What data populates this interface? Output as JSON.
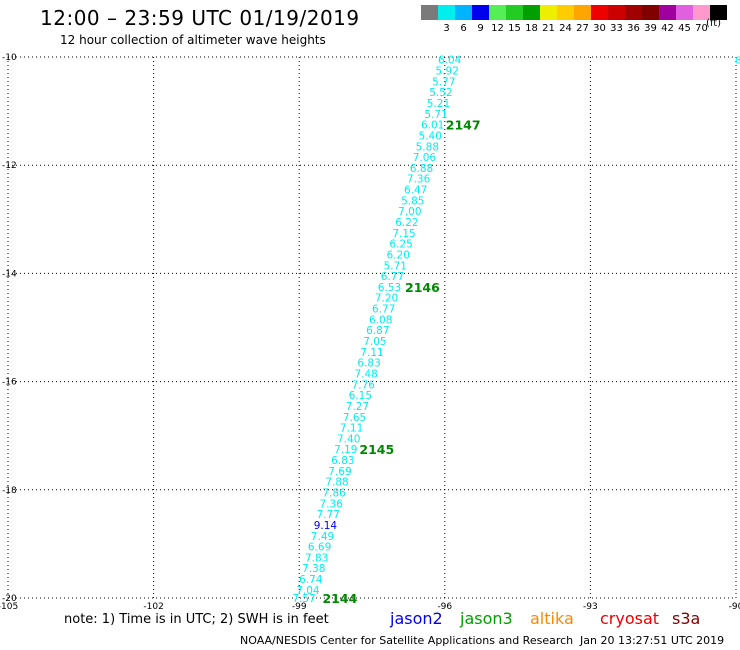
{
  "header": {
    "title": "12:00 – 23:59 UTC 01/19/2019",
    "subtitle": "12 hour collection of altimeter wave heights"
  },
  "legend": {
    "unit": "(ft)",
    "swatches": [
      {
        "color": "#7a7a7a",
        "label": ""
      },
      {
        "color": "#00eeee",
        "label": "3"
      },
      {
        "color": "#00b4ff",
        "label": "6"
      },
      {
        "color": "#0000ee",
        "label": "9"
      },
      {
        "color": "#56ee56",
        "label": "12"
      },
      {
        "color": "#22cc22",
        "label": "15"
      },
      {
        "color": "#00a000",
        "label": "18"
      },
      {
        "color": "#eeee00",
        "label": "21"
      },
      {
        "color": "#ffcc00",
        "label": "24"
      },
      {
        "color": "#ffa500",
        "label": "27"
      },
      {
        "color": "#ee0000",
        "label": "30"
      },
      {
        "color": "#cc0000",
        "label": "33"
      },
      {
        "color": "#a00000",
        "label": "36"
      },
      {
        "color": "#800000",
        "label": "39"
      },
      {
        "color": "#a000a0",
        "label": "42"
      },
      {
        "color": "#e060e0",
        "label": "45"
      },
      {
        "color": "#ff99cc",
        "label": "70"
      },
      {
        "color": "#000000",
        "label": ""
      }
    ]
  },
  "map": {
    "lon_ticks": [
      "-105",
      "-102",
      "-99",
      "-96",
      "-93",
      "-90"
    ],
    "lat_ticks": [
      "-10",
      "-12",
      "-14",
      "-16",
      "-18",
      "-20"
    ],
    "lon_range": [
      -105,
      -90
    ],
    "lat_range": [
      -20,
      -10
    ],
    "grid": true,
    "readings": [
      {
        "value": "6.04",
        "lat": -10.05,
        "lon": -95.9,
        "color": "#00eeee"
      },
      {
        "value": "5.92",
        "lat": -10.25,
        "lon": -95.95,
        "color": "#00eeee"
      },
      {
        "value": "5.77",
        "lat": -10.45,
        "lon": -96.02,
        "color": "#00eeee"
      },
      {
        "value": "5.52",
        "lat": -10.65,
        "lon": -96.08,
        "color": "#00eeee"
      },
      {
        "value": "5.21",
        "lat": -10.85,
        "lon": -96.13,
        "color": "#00eeee"
      },
      {
        "value": "5.71",
        "lat": -11.05,
        "lon": -96.18,
        "color": "#00eeee"
      },
      {
        "value": "6.01",
        "lat": -11.25,
        "lon": -96.25,
        "color": "#00eeee"
      },
      {
        "value": "5.40",
        "lat": -11.45,
        "lon": -96.3,
        "color": "#00eeee"
      },
      {
        "value": "5.88",
        "lat": -11.65,
        "lon": -96.36,
        "color": "#00eeee"
      },
      {
        "value": "7.06",
        "lat": -11.85,
        "lon": -96.42,
        "color": "#00eeee"
      },
      {
        "value": "6.88",
        "lat": -12.05,
        "lon": -96.48,
        "color": "#00eeee"
      },
      {
        "value": "7.36",
        "lat": -12.25,
        "lon": -96.54,
        "color": "#00eeee"
      },
      {
        "value": "6.47",
        "lat": -12.45,
        "lon": -96.6,
        "color": "#00eeee"
      },
      {
        "value": "5.85",
        "lat": -12.65,
        "lon": -96.66,
        "color": "#00eeee"
      },
      {
        "value": "7.00",
        "lat": -12.85,
        "lon": -96.72,
        "color": "#00eeee"
      },
      {
        "value": "6.22",
        "lat": -13.05,
        "lon": -96.78,
        "color": "#00eeee"
      },
      {
        "value": "7.15",
        "lat": -13.25,
        "lon": -96.84,
        "color": "#00eeee"
      },
      {
        "value": "6.25",
        "lat": -13.45,
        "lon": -96.9,
        "color": "#00eeee"
      },
      {
        "value": "6.20",
        "lat": -13.65,
        "lon": -96.96,
        "color": "#00eeee"
      },
      {
        "value": "5.71",
        "lat": -13.85,
        "lon": -97.02,
        "color": "#00eeee"
      },
      {
        "value": "6.77",
        "lat": -14.05,
        "lon": -97.08,
        "color": "#00eeee"
      },
      {
        "value": "6.53",
        "lat": -14.25,
        "lon": -97.14,
        "color": "#00eeee"
      },
      {
        "value": "7.20",
        "lat": -14.45,
        "lon": -97.2,
        "color": "#00eeee"
      },
      {
        "value": "6.77",
        "lat": -14.65,
        "lon": -97.26,
        "color": "#00eeee"
      },
      {
        "value": "6.08",
        "lat": -14.85,
        "lon": -97.32,
        "color": "#00eeee"
      },
      {
        "value": "6.87",
        "lat": -15.05,
        "lon": -97.38,
        "color": "#00eeee"
      },
      {
        "value": "7.05",
        "lat": -15.25,
        "lon": -97.44,
        "color": "#00eeee"
      },
      {
        "value": "7.11",
        "lat": -15.45,
        "lon": -97.5,
        "color": "#00eeee"
      },
      {
        "value": "6.83",
        "lat": -15.65,
        "lon": -97.56,
        "color": "#00eeee"
      },
      {
        "value": "7.48",
        "lat": -15.85,
        "lon": -97.62,
        "color": "#00eeee"
      },
      {
        "value": "7.76",
        "lat": -16.05,
        "lon": -97.68,
        "color": "#00eeee"
      },
      {
        "value": "6.15",
        "lat": -16.25,
        "lon": -97.74,
        "color": "#00eeee"
      },
      {
        "value": "7.27",
        "lat": -16.45,
        "lon": -97.8,
        "color": "#00eeee"
      },
      {
        "value": "7.65",
        "lat": -16.65,
        "lon": -97.86,
        "color": "#00eeee"
      },
      {
        "value": "7.11",
        "lat": -16.85,
        "lon": -97.92,
        "color": "#00eeee"
      },
      {
        "value": "7.40",
        "lat": -17.05,
        "lon": -97.98,
        "color": "#00eeee"
      },
      {
        "value": "7.19",
        "lat": -17.25,
        "lon": -98.04,
        "color": "#00eeee"
      },
      {
        "value": "6.83",
        "lat": -17.45,
        "lon": -98.1,
        "color": "#00eeee"
      },
      {
        "value": "7.69",
        "lat": -17.65,
        "lon": -98.16,
        "color": "#00eeee"
      },
      {
        "value": "7.88",
        "lat": -17.85,
        "lon": -98.22,
        "color": "#00eeee"
      },
      {
        "value": "7.86",
        "lat": -18.05,
        "lon": -98.28,
        "color": "#00eeee"
      },
      {
        "value": "7.36",
        "lat": -18.25,
        "lon": -98.34,
        "color": "#00eeee"
      },
      {
        "value": "7.77",
        "lat": -18.45,
        "lon": -98.4,
        "color": "#00eeee"
      },
      {
        "value": "9.14",
        "lat": -18.65,
        "lon": -98.46,
        "color": "#0000ee"
      },
      {
        "value": "7.49",
        "lat": -18.85,
        "lon": -98.52,
        "color": "#00eeee"
      },
      {
        "value": "6.69",
        "lat": -19.05,
        "lon": -98.58,
        "color": "#00eeee"
      },
      {
        "value": "7.83",
        "lat": -19.25,
        "lon": -98.64,
        "color": "#00eeee"
      },
      {
        "value": "7.38",
        "lat": -19.45,
        "lon": -98.7,
        "color": "#00eeee"
      },
      {
        "value": "6.74",
        "lat": -19.65,
        "lon": -98.76,
        "color": "#00eeee"
      },
      {
        "value": "7.04",
        "lat": -19.85,
        "lon": -98.82,
        "color": "#00eeee"
      },
      {
        "value": "7.57",
        "lat": -20.0,
        "lon": -98.9,
        "color": "#00eeee"
      }
    ],
    "pass_labels": [
      {
        "text": "2147",
        "lat": -11.25,
        "lon": -95.98,
        "color": "#008800"
      },
      {
        "text": "2146",
        "lat": -14.25,
        "lon": -96.82,
        "color": "#008800"
      },
      {
        "text": "2145",
        "lat": -17.25,
        "lon": -97.76,
        "color": "#008800"
      },
      {
        "text": "2144",
        "lat": -20.0,
        "lon": -98.52,
        "color": "#008800"
      }
    ],
    "edge_marker": {
      "text": "8",
      "lat": -10.05,
      "lon": -89.95,
      "color": "#00eeee"
    }
  },
  "footer": {
    "note": "note: 1) Time is in UTC; 2) SWH is in feet",
    "satellites": [
      {
        "name": "jason2",
        "color": "#0000ee"
      },
      {
        "name": "jason3",
        "color": "#00a000"
      },
      {
        "name": "altika",
        "color": "#ff8800"
      },
      {
        "name": "cryosat",
        "color": "#ee0000"
      },
      {
        "name": "s3a",
        "color": "#800000"
      }
    ],
    "credit": "NOAA/NESDIS Center for Satellite Applications and Research",
    "timestamp": "Jan 20 13:27:51 UTC 2019"
  }
}
